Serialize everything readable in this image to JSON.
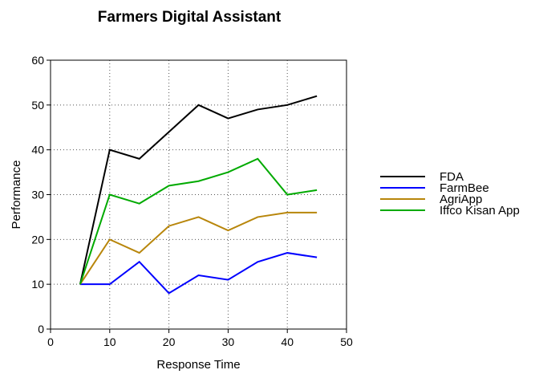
{
  "chart_data": {
    "type": "line",
    "title": "Farmers Digital Assistant",
    "xlabel": "Response Time",
    "ylabel": "Performance",
    "xlim": [
      0,
      50
    ],
    "ylim": [
      0,
      60
    ],
    "xticks": [
      0,
      10,
      20,
      30,
      40,
      50
    ],
    "yticks": [
      0,
      10,
      20,
      30,
      40,
      50,
      60
    ],
    "grid": "dotted",
    "legend_position": "right",
    "x": [
      5,
      10,
      15,
      20,
      25,
      30,
      35,
      40,
      45
    ],
    "series": [
      {
        "name": "FDA",
        "color": "#000000",
        "values": [
          10,
          40,
          38,
          44,
          50,
          47,
          49,
          50,
          52
        ]
      },
      {
        "name": "FarmBee",
        "color": "#0000ff",
        "values": [
          10,
          10,
          15,
          8,
          12,
          11,
          15,
          17,
          16
        ]
      },
      {
        "name": "AgriApp",
        "color": "#b8860b",
        "values": [
          10,
          20,
          17,
          23,
          25,
          22,
          25,
          26,
          26
        ]
      },
      {
        "name": "Iffco Kisan App",
        "color": "#00aa00",
        "values": [
          10,
          30,
          28,
          32,
          33,
          35,
          38,
          30,
          31
        ]
      }
    ]
  }
}
